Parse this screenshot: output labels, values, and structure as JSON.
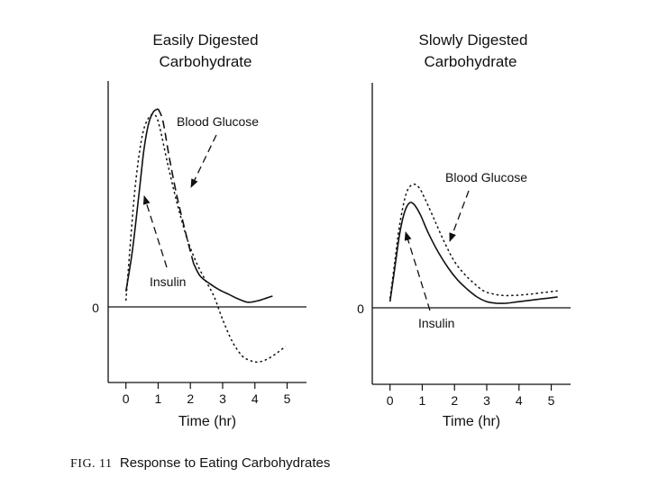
{
  "chart_data": [
    {
      "type": "line",
      "title": "Easily Digested\nCarbohydrate",
      "xlabel": "Time (hr)",
      "ylabel": "",
      "xticks": [
        0,
        1,
        2,
        3,
        4,
        5
      ],
      "xlim": [
        -0.55,
        5.6
      ],
      "ylim": [
        -2.4,
        7.3
      ],
      "y_tick_label": "0",
      "series": [
        {
          "name": "Blood Glucose",
          "style": "dotted",
          "x": [
            0.0,
            0.15,
            0.3,
            0.5,
            0.7,
            0.9,
            1.05,
            1.3,
            1.6,
            1.9,
            2.2,
            2.5,
            2.75,
            3.0,
            3.3,
            3.6,
            3.85,
            4.1,
            4.4,
            4.7,
            4.95
          ],
          "y": [
            0.2,
            2.2,
            4.0,
            5.5,
            6.1,
            6.2,
            5.8,
            4.6,
            3.3,
            2.2,
            1.4,
            0.8,
            0.3,
            -0.4,
            -1.1,
            -1.55,
            -1.7,
            -1.75,
            -1.65,
            -1.45,
            -1.25
          ]
        },
        {
          "name": "Insulin",
          "style": "solid",
          "x": [
            0.0,
            0.2,
            0.4,
            0.55,
            0.7,
            0.85,
            1.0,
            1.15,
            1.35,
            1.6,
            1.9,
            2.1,
            2.3,
            2.6,
            2.9,
            3.2,
            3.5,
            3.8,
            4.1,
            4.4,
            4.55
          ],
          "y": [
            0.5,
            1.8,
            3.6,
            5.0,
            5.9,
            6.3,
            6.4,
            6.0,
            4.8,
            3.5,
            2.2,
            1.4,
            1.0,
            0.75,
            0.55,
            0.4,
            0.25,
            0.15,
            0.2,
            0.3,
            0.35
          ]
        }
      ],
      "annotations": [
        {
          "label": "Blood Glucose",
          "anchor": "upper-right of peak"
        },
        {
          "label": "Insulin",
          "anchor": "below peak, left"
        }
      ]
    },
    {
      "type": "line",
      "title": "Slowly Digested\nCarbohydrate",
      "xlabel": "Time (hr)",
      "ylabel": "",
      "xticks": [
        0,
        1,
        2,
        3,
        4,
        5
      ],
      "xlim": [
        -0.55,
        5.6
      ],
      "ylim": [
        -2.4,
        7.3
      ],
      "y_tick_label": "0",
      "series": [
        {
          "name": "Blood Glucose",
          "style": "dotted",
          "x": [
            0.0,
            0.15,
            0.3,
            0.5,
            0.7,
            0.9,
            1.1,
            1.4,
            1.7,
            2.0,
            2.3,
            2.6,
            2.9,
            3.2,
            3.5,
            3.8,
            4.1,
            4.4,
            4.8,
            5.2
          ],
          "y": [
            0.3,
            1.5,
            2.7,
            3.7,
            4.0,
            3.9,
            3.5,
            2.8,
            2.1,
            1.5,
            1.1,
            0.8,
            0.55,
            0.45,
            0.4,
            0.4,
            0.42,
            0.45,
            0.5,
            0.55
          ]
        },
        {
          "name": "Insulin",
          "style": "solid",
          "x": [
            0.0,
            0.15,
            0.3,
            0.45,
            0.6,
            0.75,
            0.95,
            1.2,
            1.5,
            1.8,
            2.1,
            2.4,
            2.7,
            3.0,
            3.3,
            3.6,
            4.0,
            4.4,
            4.8,
            5.2
          ],
          "y": [
            0.2,
            1.3,
            2.4,
            3.1,
            3.4,
            3.35,
            3.0,
            2.4,
            1.8,
            1.3,
            0.9,
            0.6,
            0.35,
            0.2,
            0.15,
            0.15,
            0.2,
            0.25,
            0.3,
            0.35
          ]
        }
      ],
      "annotations": [
        {
          "label": "Blood Glucose",
          "anchor": "upper-right of peak"
        },
        {
          "label": "Insulin",
          "anchor": "below baseline"
        }
      ]
    }
  ],
  "caption": {
    "fig_no": "FIG. 11",
    "text": "Response to Eating Carbohydrates"
  }
}
